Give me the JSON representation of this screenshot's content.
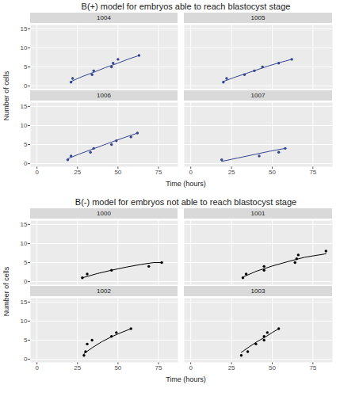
{
  "chart_data": [
    {
      "type": "line",
      "title": "B(+) model for embryos able to reach blastocyst stage",
      "x_label": "Time (hours)",
      "y_label": "Number of cells",
      "xlim": [
        -4,
        87
      ],
      "ylim": [
        -0.8,
        16
      ],
      "xticks": [
        0,
        25,
        50,
        75
      ],
      "yticks": [
        0,
        5,
        10,
        15
      ],
      "grid": true,
      "color": "#34448f",
      "marker": "circle",
      "panels": [
        {
          "name": "1004",
          "x": [
            21,
            22,
            34,
            35,
            46,
            47,
            50,
            63
          ],
          "values": [
            1,
            2,
            3,
            4,
            5,
            6,
            7,
            8
          ],
          "fit_x": [
            21,
            28,
            35,
            42,
            50,
            56,
            63
          ],
          "fit_values": [
            1.2,
            2.5,
            3.6,
            4.8,
            6.0,
            7.0,
            8.0
          ]
        },
        {
          "name": "1005",
          "x": [
            20,
            22,
            33,
            39,
            44,
            54,
            62
          ],
          "values": [
            1,
            2,
            3,
            4,
            5,
            6,
            7
          ],
          "fit_x": [
            20,
            27,
            34,
            41,
            48,
            55,
            62
          ],
          "fit_values": [
            1.2,
            2.3,
            3.3,
            4.3,
            5.3,
            6.2,
            7.0
          ]
        },
        {
          "name": "1006",
          "x": [
            19,
            21,
            33,
            35,
            46,
            49,
            58,
            62
          ],
          "values": [
            1,
            2,
            3,
            4,
            5,
            6,
            7,
            8
          ],
          "fit_x": [
            19,
            26,
            33,
            40,
            47,
            55,
            62
          ],
          "fit_values": [
            1.3,
            2.5,
            3.6,
            4.7,
            5.8,
            7.0,
            8.0
          ]
        },
        {
          "name": "1007",
          "x": [
            19,
            42,
            54,
            58
          ],
          "values": [
            1,
            2,
            3,
            4
          ],
          "fit_x": [
            19,
            29,
            39,
            49,
            58
          ],
          "fit_values": [
            0.6,
            1.5,
            2.4,
            3.3,
            4.0
          ]
        }
      ]
    },
    {
      "type": "line",
      "title": "B(-) model for embryos not able to reach blastocyst stage",
      "x_label": "Time (hours)",
      "y_label": "Number of cells",
      "xlim": [
        -4,
        87
      ],
      "ylim": [
        -0.8,
        16
      ],
      "xticks": [
        0,
        25,
        50,
        75
      ],
      "yticks": [
        0,
        5,
        10,
        15
      ],
      "grid": true,
      "color": "#000000",
      "marker": "circle",
      "panels": [
        {
          "name": "1000",
          "x": [
            28,
            31,
            46,
            69,
            77
          ],
          "values": [
            1,
            2,
            3,
            4,
            5
          ],
          "fit_x": [
            28,
            37,
            46,
            55,
            64,
            72,
            77
          ],
          "fit_values": [
            1.0,
            2.1,
            3.0,
            3.8,
            4.5,
            5.0,
            5.0
          ]
        },
        {
          "name": "1001",
          "x": [
            32,
            34,
            45,
            45,
            64,
            65,
            66,
            83
          ],
          "values": [
            1,
            2,
            3,
            4,
            5,
            6,
            7,
            8
          ],
          "fit_x": [
            32,
            40,
            50,
            60,
            70,
            83
          ],
          "fit_values": [
            1.2,
            2.7,
            4.1,
            5.3,
            6.4,
            7.3
          ]
        },
        {
          "name": "1002",
          "x": [
            29,
            30,
            31,
            34,
            46,
            49,
            58
          ],
          "values": [
            1,
            2,
            4,
            5,
            6,
            7,
            8
          ],
          "fit_x": [
            29,
            34,
            40,
            46,
            52,
            58
          ],
          "fit_values": [
            1.5,
            3.0,
            4.6,
            5.9,
            7.0,
            8.0
          ]
        },
        {
          "name": "1003",
          "x": [
            31,
            35,
            40,
            45,
            45,
            47,
            54
          ],
          "values": [
            1,
            2,
            4,
            5,
            6,
            7,
            8
          ],
          "fit_x": [
            31,
            36,
            41,
            46,
            50,
            54
          ],
          "fit_values": [
            1.8,
            3.3,
            4.7,
            5.9,
            7.0,
            8.0
          ]
        }
      ]
    }
  ]
}
